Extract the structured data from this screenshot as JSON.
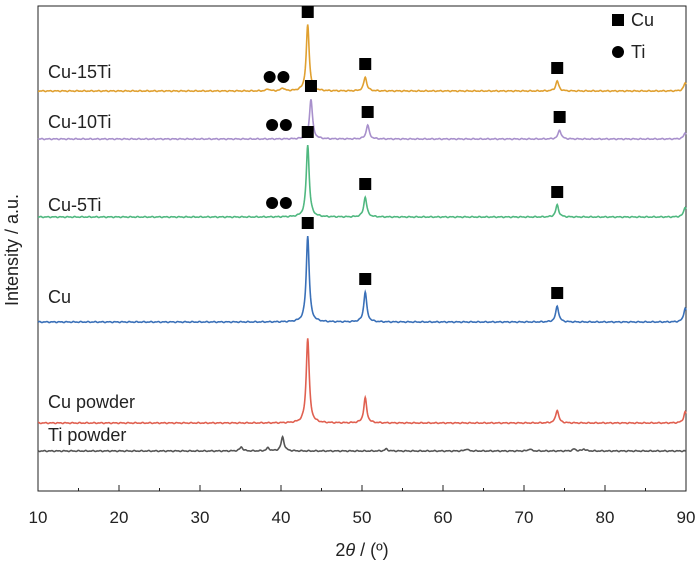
{
  "chart_data": {
    "type": "line",
    "xlabel_prefix": "2",
    "xlabel_theta": "θ",
    "xlabel_suffix": " / (º)",
    "ylabel": "Intensity / a.u.",
    "xlim": [
      10,
      90
    ],
    "x_ticks": [
      "10",
      "20",
      "30",
      "40",
      "50",
      "60",
      "70",
      "80",
      "90"
    ],
    "y_ticks_shown": false,
    "legend": {
      "position": "top-right",
      "entries": [
        {
          "label": "Cu",
          "marker": "square"
        },
        {
          "label": "Ti",
          "marker": "circle"
        }
      ]
    },
    "series": [
      {
        "name": "Cu-15Ti",
        "color": "#e0a030",
        "baseline": 86,
        "peaks": [
          [
            38.4,
            2
          ],
          [
            40.2,
            3
          ],
          [
            43.3,
            66
          ],
          [
            50.4,
            14
          ],
          [
            74.1,
            10
          ],
          [
            89.9,
            8
          ]
        ],
        "markers": [
          {
            "type": "circle",
            "x": 38.6
          },
          {
            "type": "circle",
            "x": 40.3
          },
          {
            "type": "square",
            "x": 43.3
          },
          {
            "type": "square",
            "x": 50.4
          },
          {
            "type": "square",
            "x": 74.1
          }
        ]
      },
      {
        "name": "Cu-10Ti",
        "color": "#a890cc",
        "baseline": 86,
        "peaks": [
          [
            43.7,
            40
          ],
          [
            50.7,
            14
          ],
          [
            74.4,
            9
          ],
          [
            89.9,
            6
          ]
        ],
        "markers": [
          {
            "type": "circle",
            "x": 38.9
          },
          {
            "type": "circle",
            "x": 40.6
          },
          {
            "type": "square",
            "x": 43.7
          },
          {
            "type": "square",
            "x": 50.7
          },
          {
            "type": "square",
            "x": 74.4
          }
        ]
      },
      {
        "name": "Cu-5Ti",
        "color": "#50b880",
        "baseline": 86,
        "peaks": [
          [
            43.3,
            72
          ],
          [
            50.4,
            20
          ],
          [
            74.1,
            12
          ],
          [
            89.9,
            10
          ]
        ],
        "markers": [
          {
            "type": "circle",
            "x": 38.9
          },
          {
            "type": "circle",
            "x": 40.6
          },
          {
            "type": "square",
            "x": 43.3
          },
          {
            "type": "square",
            "x": 50.4
          },
          {
            "type": "square",
            "x": 74.1
          }
        ]
      },
      {
        "name": "Cu",
        "color": "#3a70b8",
        "baseline": 86,
        "peaks": [
          [
            43.3,
            86
          ],
          [
            50.4,
            30
          ],
          [
            74.1,
            16
          ],
          [
            89.9,
            14
          ]
        ],
        "markers": [
          {
            "type": "square",
            "x": 43.3
          },
          {
            "type": "square",
            "x": 50.4
          },
          {
            "type": "square",
            "x": 74.1
          }
        ]
      },
      {
        "name": "Cu powder",
        "color": "#e06050",
        "baseline": 86,
        "peaks": [
          [
            43.3,
            85
          ],
          [
            50.4,
            25
          ],
          [
            74.1,
            13
          ],
          [
            89.9,
            11
          ]
        ],
        "markers": []
      },
      {
        "name": "Ti powder",
        "color": "#555555",
        "baseline": 86,
        "peaks": [
          [
            35.1,
            4
          ],
          [
            38.4,
            3
          ],
          [
            40.2,
            14
          ],
          [
            53.0,
            2
          ],
          [
            62.9,
            2
          ],
          [
            70.7,
            2
          ],
          [
            76.2,
            2
          ],
          [
            77.4,
            2
          ]
        ],
        "markers": []
      }
    ]
  }
}
